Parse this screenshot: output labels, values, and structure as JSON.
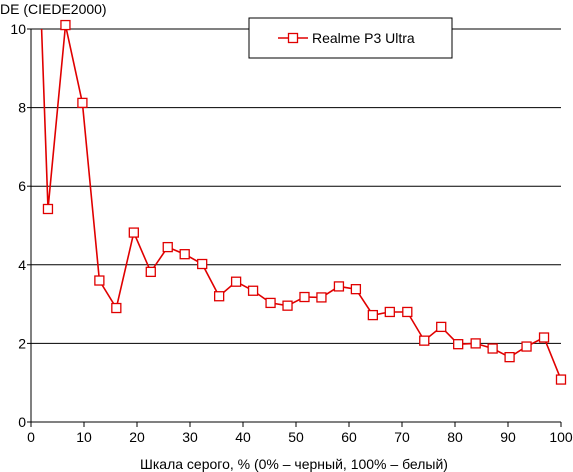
{
  "chart_data": {
    "type": "line",
    "ylabel": "DE (CIEDE2000)",
    "xlabel": "Шкала серого, % (0% – черный, 100% – белый)",
    "xlim": [
      0,
      100
    ],
    "ylim": [
      0,
      10
    ],
    "x_ticks": [
      "0",
      "10",
      "20",
      "30",
      "40",
      "50",
      "60",
      "70",
      "80",
      "90",
      "100"
    ],
    "y_ticks": [
      "0",
      "2",
      "4",
      "6",
      "8",
      "10"
    ],
    "grid": "horizontal",
    "legend_position": "top-right",
    "colors": {
      "series": "#e00000",
      "grid": "#000000",
      "axis": "#000000"
    },
    "series": [
      {
        "name": "Realme P3 Ultra",
        "x": [
          2.0,
          3.2,
          6.5,
          9.7,
          12.9,
          16.1,
          19.4,
          22.6,
          25.8,
          29.0,
          32.3,
          35.5,
          38.7,
          41.9,
          45.2,
          48.4,
          51.6,
          54.8,
          58.1,
          61.3,
          64.5,
          67.7,
          71.0,
          74.2,
          77.4,
          80.6,
          83.9,
          87.1,
          90.3,
          93.5,
          96.8,
          100.0
        ],
        "y": [
          10.0,
          5.42,
          10.1,
          8.12,
          3.6,
          2.9,
          4.82,
          3.82,
          4.45,
          4.27,
          4.02,
          3.2,
          3.57,
          3.34,
          3.03,
          2.96,
          3.18,
          3.17,
          3.45,
          3.38,
          2.72,
          2.8,
          2.8,
          2.07,
          2.42,
          1.98,
          2.0,
          1.87,
          1.65,
          1.92,
          2.15,
          1.08
        ]
      }
    ]
  }
}
